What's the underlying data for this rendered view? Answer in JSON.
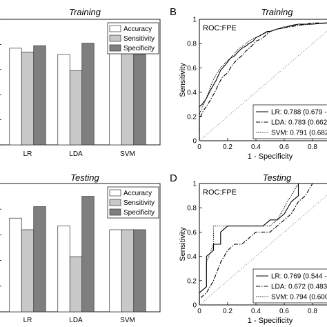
{
  "chart_data": [
    {
      "type": "bar",
      "title": "Training",
      "panel_label": "",
      "categories": [
        "LR",
        "LDA",
        "SVM"
      ],
      "series": [
        {
          "name": "Accuracy",
          "values": [
            0.77,
            0.72,
            0.74
          ],
          "color": "#ffffff"
        },
        {
          "name": "Sensitivity",
          "values": [
            0.74,
            0.59,
            0.75
          ],
          "color": "#c8c8c8"
        },
        {
          "name": "Specificity",
          "values": [
            0.79,
            0.81,
            0.72
          ],
          "color": "#7f7f7f"
        }
      ],
      "ylim": [
        0,
        1
      ],
      "legend": "top-right",
      "grid": false
    },
    {
      "type": "line",
      "title": "Training",
      "panel_label": "B",
      "annotation": "ROC:FPE",
      "xlabel": "1 - Specificity",
      "ylabel": "Sensitivity",
      "xlim": [
        0,
        1
      ],
      "ylim": [
        0,
        1
      ],
      "xticks": [
        "0",
        "0.2",
        "0.4",
        "0.6",
        "0.8",
        "1"
      ],
      "yticks": [
        "0",
        "0.2",
        "0.4",
        "0.6",
        "0.8",
        "1"
      ],
      "legend": "bottom-right",
      "series": [
        {
          "name": "LR: 0.788 (0.679 -",
          "dash": "solid",
          "x": [
            0,
            0,
            0.02,
            0.05,
            0.08,
            0.12,
            0.15,
            0.18,
            0.2,
            0.22,
            0.25,
            0.28,
            0.3,
            0.33,
            0.35,
            0.38,
            0.4,
            0.42,
            0.45,
            0.48,
            0.5,
            0.55,
            0.6,
            0.65,
            0.7,
            0.8,
            0.9,
            1
          ],
          "y": [
            0,
            0.28,
            0.3,
            0.35,
            0.42,
            0.5,
            0.58,
            0.62,
            0.65,
            0.68,
            0.7,
            0.74,
            0.76,
            0.78,
            0.8,
            0.82,
            0.85,
            0.86,
            0.88,
            0.9,
            0.9,
            0.92,
            0.93,
            0.95,
            0.96,
            0.96,
            0.97,
            1
          ]
        },
        {
          "name": "LDA: 0.783 (0.662",
          "dash": "dashdot",
          "x": [
            0,
            0,
            0.03,
            0.06,
            0.1,
            0.13,
            0.16,
            0.2,
            0.23,
            0.26,
            0.3,
            0.33,
            0.37,
            0.4,
            0.44,
            0.47,
            0.5,
            0.55,
            0.6,
            0.7,
            0.75,
            0.8,
            0.9,
            1
          ],
          "y": [
            0,
            0.18,
            0.25,
            0.3,
            0.38,
            0.45,
            0.52,
            0.56,
            0.62,
            0.66,
            0.7,
            0.74,
            0.78,
            0.82,
            0.84,
            0.87,
            0.9,
            0.92,
            0.93,
            0.95,
            0.96,
            0.97,
            0.97,
            1
          ]
        },
        {
          "name": "SVM: 0.791 (0.682",
          "dash": "dotted",
          "x": [
            0,
            0,
            0.03,
            0.06,
            0.09,
            0.12,
            0.15,
            0.19,
            0.22,
            0.25,
            0.28,
            0.32,
            0.35,
            0.38,
            0.42,
            0.45,
            0.5,
            0.55,
            0.6,
            0.7,
            0.8,
            0.9,
            1
          ],
          "y": [
            0,
            0.22,
            0.3,
            0.38,
            0.48,
            0.55,
            0.6,
            0.65,
            0.68,
            0.72,
            0.76,
            0.79,
            0.82,
            0.84,
            0.86,
            0.88,
            0.9,
            0.92,
            0.94,
            0.95,
            0.96,
            0.97,
            1
          ]
        },
        {
          "name": "",
          "dash": "chance",
          "x": [
            0,
            1
          ],
          "y": [
            0,
            1
          ]
        }
      ]
    },
    {
      "type": "bar",
      "title": "Testing",
      "panel_label": "",
      "categories": [
        "LR",
        "LDA",
        "SVM"
      ],
      "series": [
        {
          "name": "Accuracy",
          "values": [
            0.73,
            0.67,
            0.64
          ],
          "color": "#ffffff"
        },
        {
          "name": "Sensitivity",
          "values": [
            0.64,
            0.43,
            0.64
          ],
          "color": "#c8c8c8"
        },
        {
          "name": "Specificity",
          "values": [
            0.82,
            0.9,
            0.64
          ],
          "color": "#7f7f7f"
        }
      ],
      "ylim": [
        0,
        1
      ],
      "legend": "top-right",
      "grid": false
    },
    {
      "type": "line",
      "title": "Testing",
      "panel_label": "D",
      "annotation": "ROC:FPE",
      "xlabel": "1 - Specificity",
      "ylabel": "Sensitivity",
      "xlim": [
        0,
        1
      ],
      "ylim": [
        0,
        1
      ],
      "xticks": [
        "0",
        "0.2",
        "0.4",
        "0.6",
        "0.8",
        "1"
      ],
      "yticks": [
        "0",
        "0.2",
        "0.4",
        "0.6",
        "0.8",
        "1"
      ],
      "legend": "bottom-right",
      "series": [
        {
          "name": "LR: 0.769 (0.544 -",
          "dash": "solid",
          "x": [
            0,
            0,
            0.05,
            0.05,
            0.1,
            0.1,
            0.15,
            0.15,
            0.2,
            0.2,
            0.25,
            0.3,
            0.35,
            0.4,
            0.45,
            0.5,
            0.55,
            0.6,
            0.65,
            0.7,
            0.7,
            0.8,
            1
          ],
          "y": [
            0,
            0.1,
            0.15,
            0.4,
            0.45,
            0.5,
            0.5,
            0.6,
            0.65,
            0.65,
            0.65,
            0.65,
            0.65,
            0.65,
            0.65,
            0.7,
            0.7,
            0.75,
            0.85,
            0.9,
            1,
            1,
            1
          ]
        },
        {
          "name": "LDA: 0.672 (0.483",
          "dash": "dashdot",
          "x": [
            0,
            0,
            0.05,
            0.1,
            0.15,
            0.2,
            0.25,
            0.3,
            0.35,
            0.4,
            0.45,
            0.5,
            0.55,
            0.6,
            0.65,
            0.7,
            0.75,
            0.8,
            0.85,
            1
          ],
          "y": [
            0,
            0.05,
            0.1,
            0.2,
            0.35,
            0.45,
            0.5,
            0.5,
            0.55,
            0.6,
            0.6,
            0.6,
            0.65,
            0.7,
            0.75,
            0.85,
            0.9,
            1,
            1,
            1
          ]
        },
        {
          "name": "SVM: 0.794 (0.600",
          "dash": "dotted",
          "x": [
            0,
            0,
            0.05,
            0.05,
            0.1,
            0.1,
            0.15,
            0.2,
            0.25,
            0.3,
            0.35,
            0.4,
            0.45,
            0.5,
            0.55,
            0.6,
            0.62,
            0.65,
            0.7,
            0.8,
            1
          ],
          "y": [
            0,
            0.1,
            0.15,
            0.35,
            0.5,
            0.65,
            0.65,
            0.65,
            0.65,
            0.65,
            0.65,
            0.65,
            0.65,
            0.65,
            0.7,
            0.8,
            0.85,
            0.9,
            1,
            1,
            1
          ]
        },
        {
          "name": "",
          "dash": "chance",
          "x": [
            0,
            1
          ],
          "y": [
            0,
            1
          ]
        }
      ]
    }
  ]
}
